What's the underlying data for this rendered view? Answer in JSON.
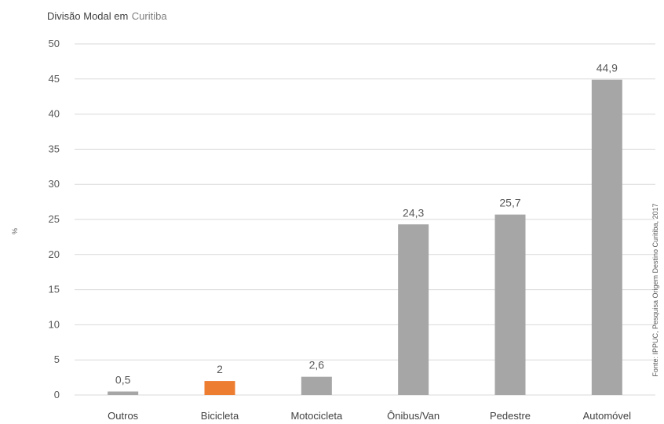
{
  "chart_data": {
    "type": "bar",
    "title": "Divisão Modal em",
    "title_highlight": "Curitiba",
    "categories": [
      "Outros",
      "Bicicleta",
      "Motocicleta",
      "Ônibus/Van",
      "Pedestre",
      "Automóvel"
    ],
    "values": [
      0.5,
      2,
      2.6,
      24.3,
      25.7,
      44.9
    ],
    "data_labels": [
      "0,5",
      "2",
      "2,6",
      "24,3",
      "25,7",
      "44,9"
    ],
    "y_ticks": [
      "0",
      "5",
      "10",
      "15",
      "20",
      "25",
      "30",
      "35",
      "40",
      "45",
      "50"
    ],
    "ylim": [
      0,
      50
    ],
    "grid": true,
    "legend": "none",
    "xlabel": "",
    "ylabel": "%",
    "bar_color": "#a6a6a6",
    "highlight_color": "#ed7d31",
    "highlight_category": "Bicicleta",
    "side_note": "Fonte: IPPUC, Pesquisa Origem Destino Curitiba, 2017"
  }
}
